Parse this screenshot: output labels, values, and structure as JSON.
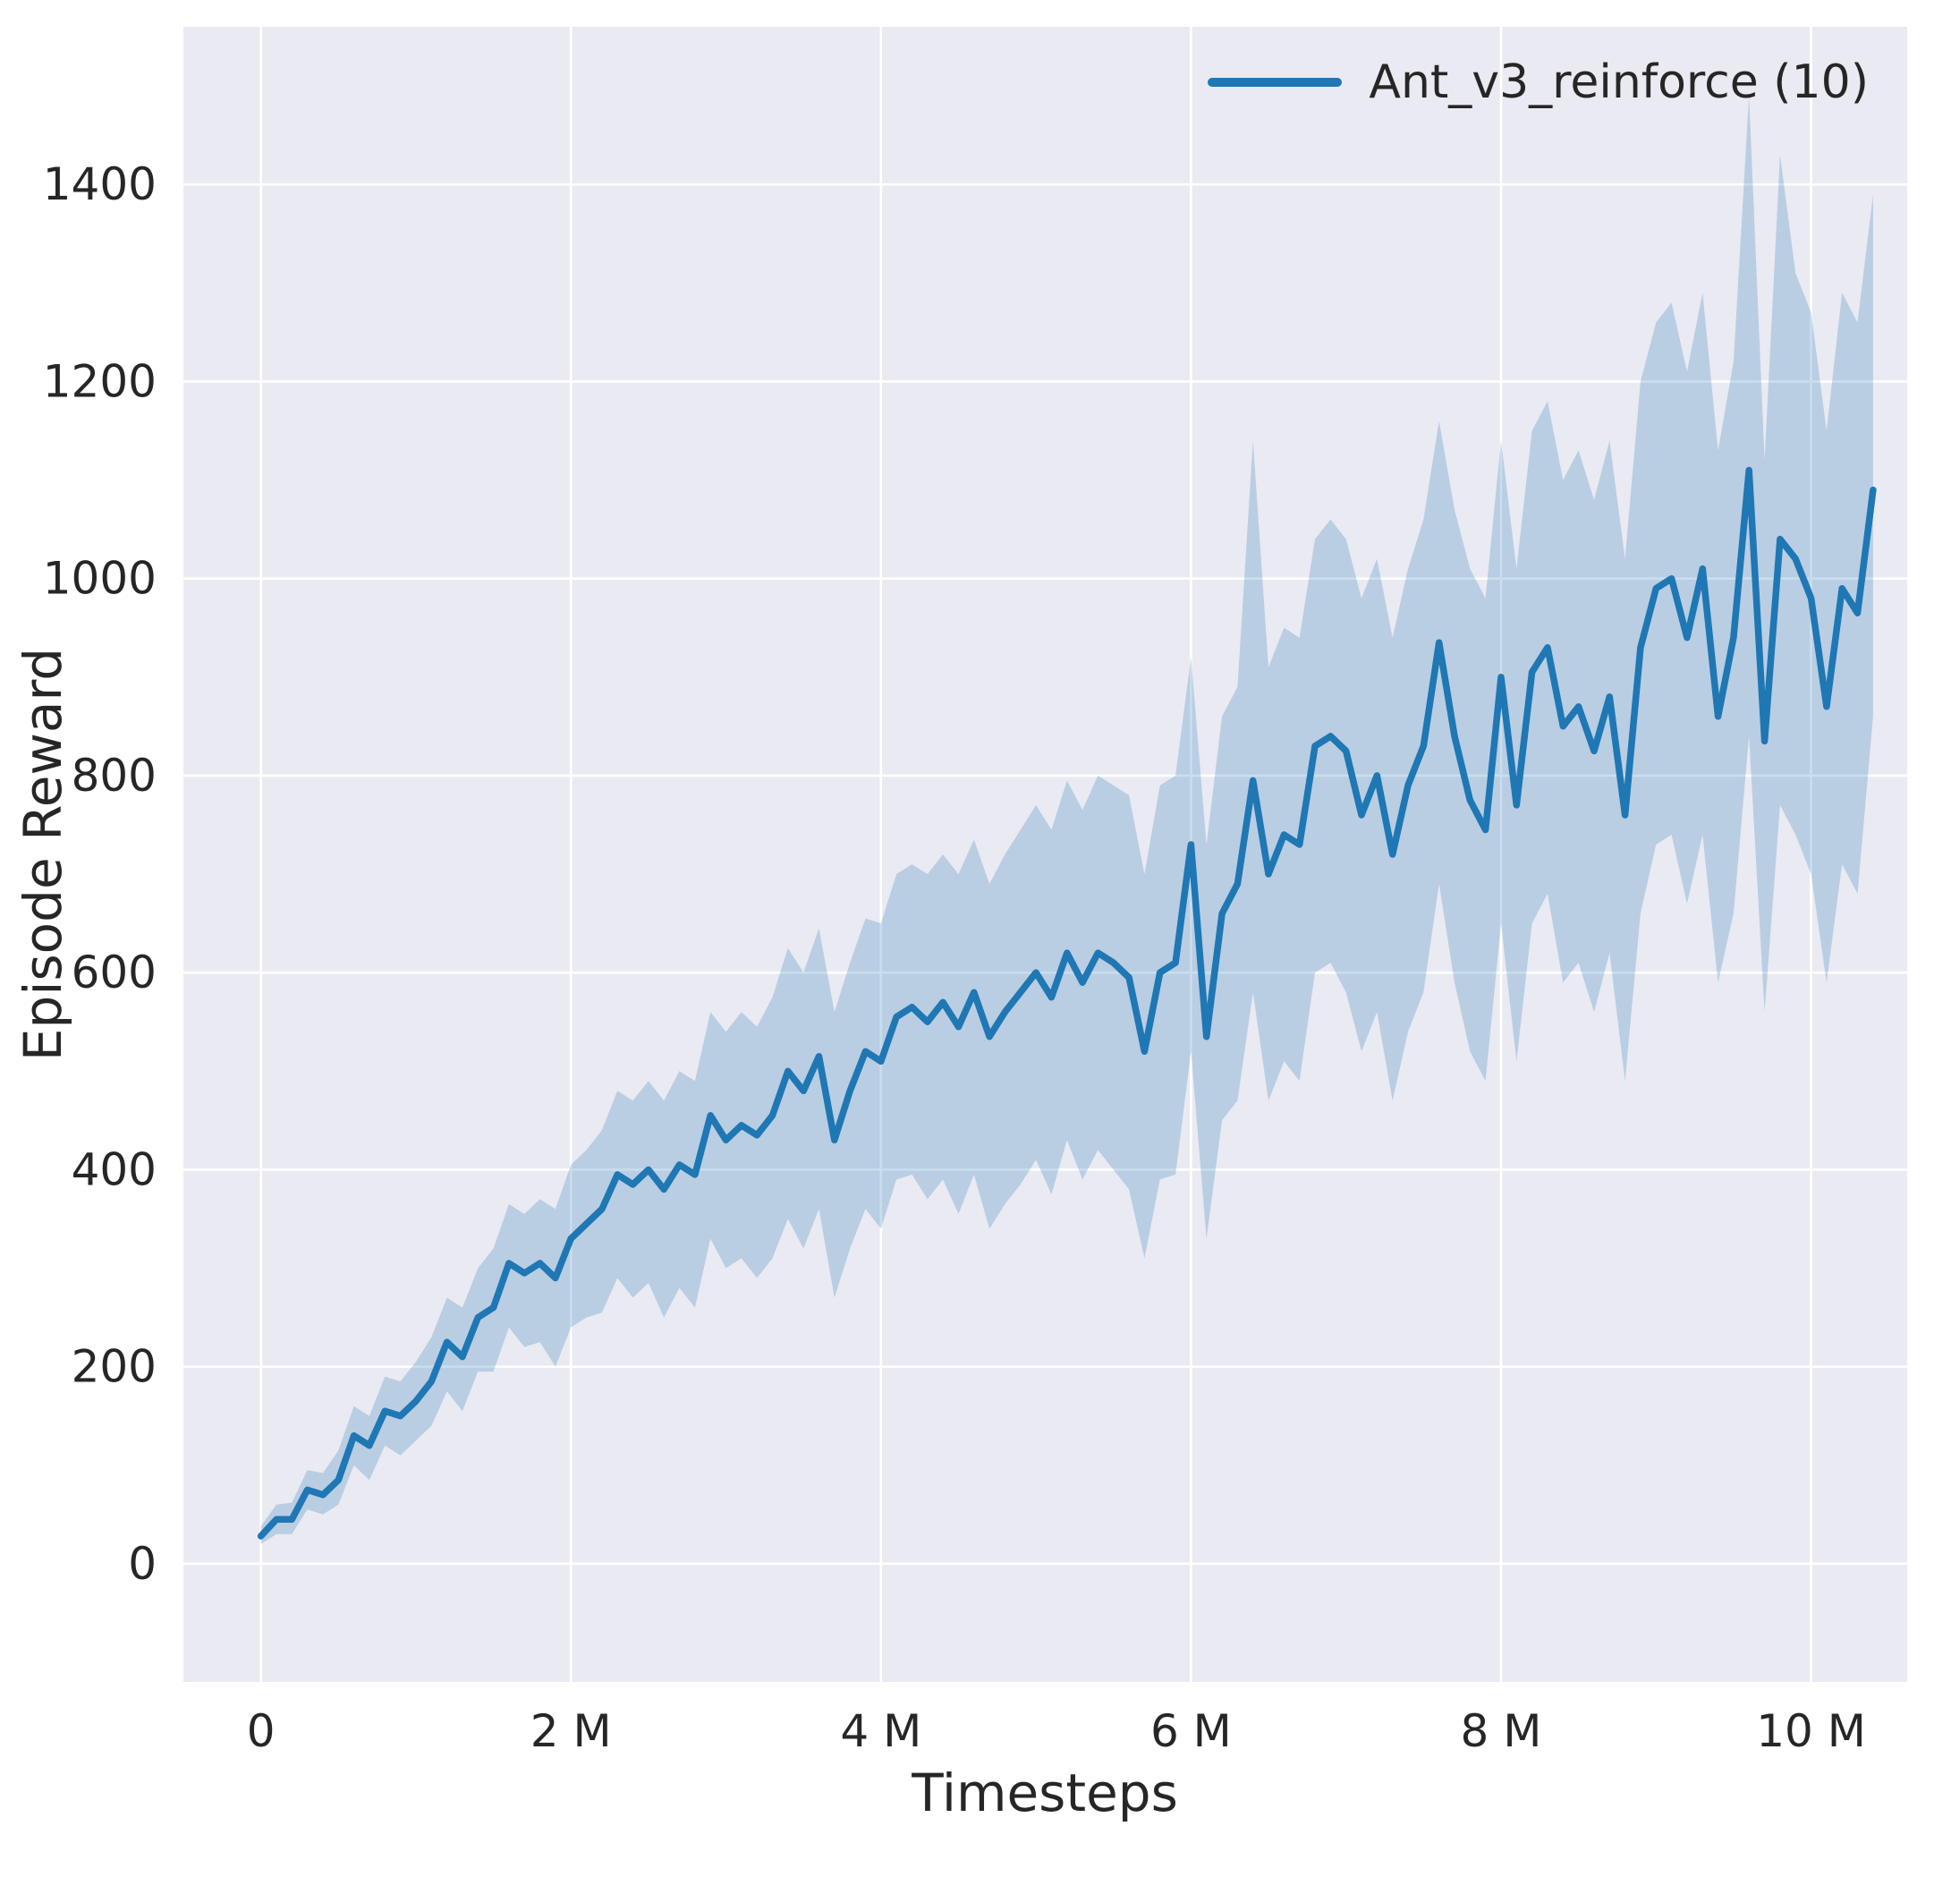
{
  "chart_data": {
    "type": "line",
    "title": "",
    "xlabel": "Timesteps",
    "ylabel": "Episode Reward",
    "legend": [
      {
        "label": "Ant_v3_reinforce (10)",
        "color": "#1f77b4"
      }
    ],
    "legend_position": "upper right",
    "grid": true,
    "plot_bg": "#eaeaf2",
    "grid_color": "#ffffff",
    "line_color": "#1f77b4",
    "band_color": "#1f77b4",
    "band_alpha": 0.24,
    "xlim": [
      -0.5,
      10.62
    ],
    "ylim": [
      -120,
      1560
    ],
    "x_ticks": [
      {
        "v": 0,
        "label": "0"
      },
      {
        "v": 2,
        "label": "2 M"
      },
      {
        "v": 4,
        "label": "4 M"
      },
      {
        "v": 6,
        "label": "6 M"
      },
      {
        "v": 8,
        "label": "8 M"
      },
      {
        "v": 10,
        "label": "10 M"
      }
    ],
    "y_ticks": [
      0,
      200,
      400,
      600,
      800,
      1000,
      1200,
      1400
    ],
    "series": [
      {
        "name": "Ant_v3_reinforce (10)",
        "x_unit": "millions of timesteps",
        "x": [
          0,
          0.1,
          0.2,
          0.3,
          0.4,
          0.5,
          0.6,
          0.7,
          0.8,
          0.9,
          1,
          1.1,
          1.2,
          1.3,
          1.4,
          1.5,
          1.6,
          1.7,
          1.8,
          1.9,
          2,
          2.1,
          2.2,
          2.3,
          2.4,
          2.5,
          2.6,
          2.7,
          2.8,
          2.9,
          3,
          3.1,
          3.2,
          3.3,
          3.4,
          3.5,
          3.6,
          3.7,
          3.8,
          3.9,
          4,
          4.1,
          4.2,
          4.3,
          4.4,
          4.5,
          4.6,
          4.7,
          4.8,
          4.9,
          5,
          5.1,
          5.2,
          5.3,
          5.4,
          5.5,
          5.6,
          5.7,
          5.8,
          5.9,
          6,
          6.1,
          6.2,
          6.3,
          6.4,
          6.5,
          6.6,
          6.7,
          6.8,
          6.9,
          7,
          7.1,
          7.2,
          7.3,
          7.4,
          7.5,
          7.6,
          7.7,
          7.8,
          7.9,
          8,
          8.1,
          8.2,
          8.3,
          8.4,
          8.5,
          8.6,
          8.7,
          8.8,
          8.9,
          9,
          9.1,
          9.2,
          9.3,
          9.4,
          9.5,
          9.6,
          9.7,
          9.8,
          9.9,
          10,
          10.1,
          10.2,
          10.3,
          10.4
        ],
        "mean": [
          28,
          45,
          45,
          75,
          70,
          85,
          130,
          120,
          155,
          150,
          165,
          185,
          225,
          210,
          250,
          260,
          305,
          295,
          305,
          290,
          330,
          345,
          360,
          395,
          385,
          400,
          380,
          405,
          395,
          455,
          430,
          445,
          435,
          455,
          500,
          480,
          515,
          430,
          480,
          520,
          510,
          555,
          565,
          550,
          570,
          545,
          580,
          535,
          560,
          580,
          600,
          575,
          620,
          590,
          620,
          610,
          595,
          520,
          600,
          610,
          730,
          535,
          660,
          690,
          795,
          700,
          740,
          730,
          830,
          840,
          825,
          760,
          800,
          720,
          790,
          830,
          935,
          840,
          775,
          745,
          900,
          770,
          905,
          930,
          850,
          870,
          825,
          880,
          760,
          930,
          990,
          1000,
          940,
          1010,
          860,
          940,
          1110,
          835,
          1040,
          1020,
          980,
          870,
          990,
          965,
          1090
        ],
        "lo": [
          20,
          30,
          30,
          55,
          50,
          60,
          100,
          85,
          120,
          110,
          125,
          140,
          175,
          155,
          195,
          195,
          240,
          220,
          225,
          200,
          240,
          250,
          255,
          290,
          270,
          285,
          250,
          280,
          260,
          330,
          300,
          310,
          290,
          310,
          350,
          320,
          360,
          270,
          320,
          360,
          340,
          390,
          395,
          370,
          390,
          355,
          395,
          340,
          365,
          385,
          410,
          375,
          430,
          390,
          420,
          400,
          380,
          310,
          390,
          395,
          520,
          330,
          450,
          470,
          580,
          470,
          510,
          490,
          600,
          610,
          580,
          520,
          560,
          470,
          540,
          580,
          690,
          590,
          520,
          490,
          650,
          510,
          650,
          680,
          590,
          610,
          560,
          620,
          490,
          660,
          730,
          740,
          670,
          740,
          590,
          660,
          840,
          560,
          770,
          740,
          700,
          590,
          710,
          680,
          860
        ],
        "hi": [
          38,
          60,
          62,
          95,
          92,
          115,
          160,
          150,
          190,
          185,
          205,
          230,
          270,
          260,
          300,
          320,
          365,
          355,
          370,
          360,
          405,
          420,
          440,
          480,
          470,
          490,
          470,
          500,
          490,
          560,
          540,
          560,
          545,
          575,
          625,
          600,
          645,
          560,
          610,
          655,
          650,
          700,
          710,
          700,
          720,
          700,
          735,
          690,
          720,
          745,
          770,
          745,
          795,
          765,
          800,
          790,
          780,
          700,
          790,
          800,
          920,
          730,
          860,
          890,
          1140,
          910,
          950,
          940,
          1040,
          1060,
          1040,
          980,
          1020,
          940,
          1010,
          1060,
          1160,
          1070,
          1010,
          980,
          1140,
          1010,
          1150,
          1180,
          1100,
          1130,
          1080,
          1140,
          1020,
          1200,
          1260,
          1280,
          1210,
          1290,
          1130,
          1220,
          1490,
          1120,
          1430,
          1310,
          1270,
          1150,
          1290,
          1260,
          1390
        ]
      }
    ]
  }
}
